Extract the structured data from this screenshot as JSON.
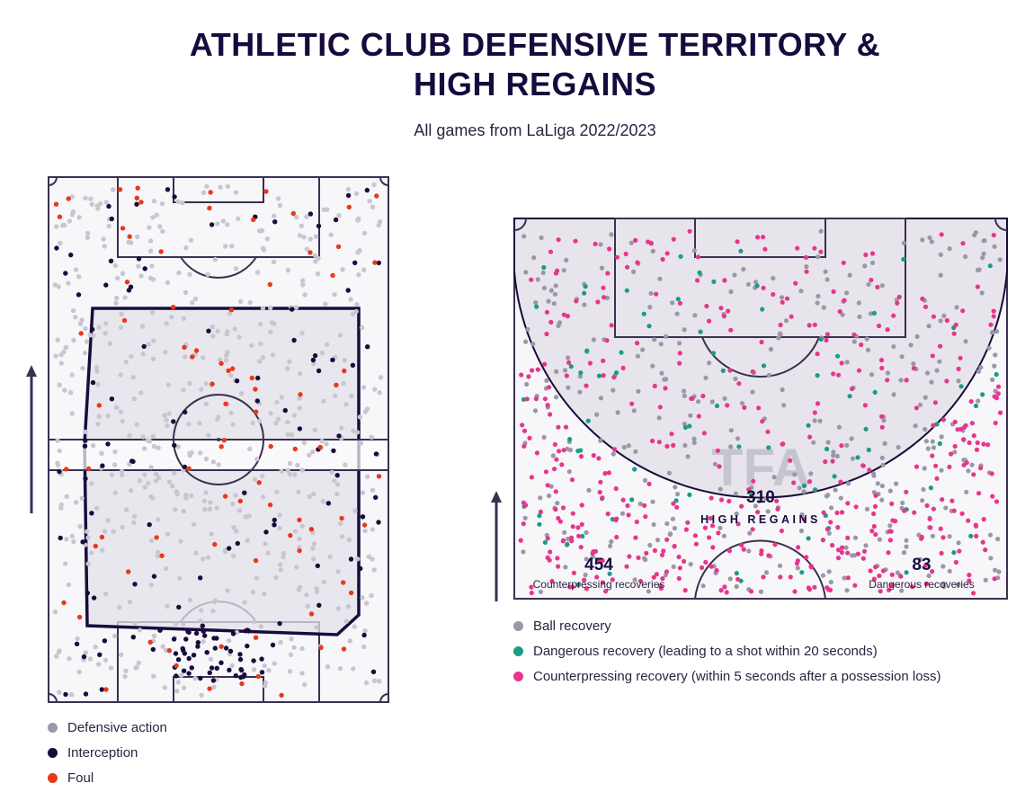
{
  "title": {
    "line1": "ATHLETIC CLUB DEFENSIVE TERRITORY &",
    "line2": "HIGH REGAINS"
  },
  "subtitle": "All games from LaLiga 2022/2023",
  "colors": {
    "pitch_bg": "#f7f6f9",
    "pitch_line": "#3a3050",
    "territory_fill": "#e4e2e9",
    "defensive_action": "#c9c6cf",
    "interception": "#1a0b3d",
    "foul": "#e8391a",
    "ball_recovery": "#9b97a6",
    "dangerous_recovery": "#1a9c86",
    "counterpressing_recovery": "#e8358e"
  },
  "chart_data": [
    {
      "type": "scatter",
      "name": "Defensive territory",
      "series": [
        {
          "name": "Defensive action",
          "color": "#c9c6cf",
          "approx_count": 560
        },
        {
          "name": "Interception",
          "color": "#1a0b3d",
          "approx_count": 150
        },
        {
          "name": "Foul",
          "color": "#e8391a",
          "approx_count": 85
        }
      ],
      "legend": [
        "Defensive action",
        "Interception",
        "Foul"
      ],
      "attack_direction": "up"
    },
    {
      "type": "scatter",
      "name": "High regains",
      "series": [
        {
          "name": "Ball recovery",
          "color": "#9b97a6",
          "approx_count": 380
        },
        {
          "name": "Dangerous recovery",
          "color": "#1a9c86",
          "count": 83
        },
        {
          "name": "Counterpressing recovery",
          "color": "#e8358e",
          "count": 454
        }
      ],
      "annotations": {
        "high_regains_value": "310",
        "high_regains_label": "HIGH REGAINS",
        "counterpressing_value": "454",
        "counterpressing_label": "Counterpressing recoveries",
        "dangerous_value": "83",
        "dangerous_label": "Dangerous recoveries",
        "watermark": "TFA"
      },
      "legend": [
        "Ball recovery",
        "Dangerous recovery (leading to a shot within 20 seconds)",
        "Counterpressing recovery (within 5 seconds after a possession loss)"
      ],
      "attack_direction": "up"
    }
  ]
}
